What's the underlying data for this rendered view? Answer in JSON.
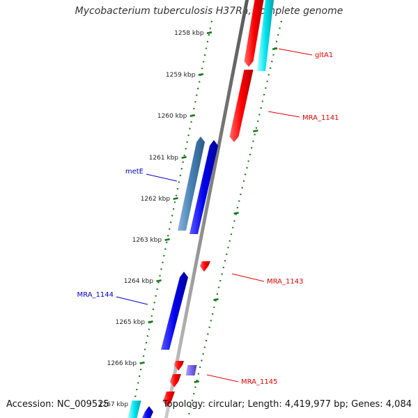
{
  "title": "Mycobacterium tuberculosis H37Ra, complete genome",
  "footer": {
    "accession": "Accession: NC_009525",
    "topology": "Topology: circular; Length: 4,419,977 bp; Genes: 4,084"
  },
  "ticks": [
    "1258 kbp",
    "1259 kbp",
    "1260 kbp",
    "1261 kbp",
    "1262 kbp",
    "1263 kbp",
    "1264 kbp",
    "1265 kbp",
    "1266 kbp",
    "1267 kbp"
  ],
  "genes": [
    {
      "name": "gltA1",
      "strand": "forward",
      "color": "#e60000"
    },
    {
      "name": "MRA_1141",
      "strand": "forward",
      "color": "#e60000"
    },
    {
      "name": "metE",
      "strand": "reverse",
      "color": "#0000cc"
    },
    {
      "name": "MRA_1143",
      "strand": "forward",
      "color": "#e60000"
    },
    {
      "name": "MRA_1144",
      "strand": "reverse",
      "color": "#0000cc"
    },
    {
      "name": "MRA_1145",
      "strand": "forward",
      "color": "#e60000"
    }
  ],
  "colors": {
    "cds": "#ff0000",
    "cds_reverse": "#0000ee",
    "rna": "#00e5ee",
    "gene_reverse": "#4682b4",
    "misc": "#7b68ee",
    "backbone": "#888888",
    "ticks": "#1a7a1a"
  }
}
